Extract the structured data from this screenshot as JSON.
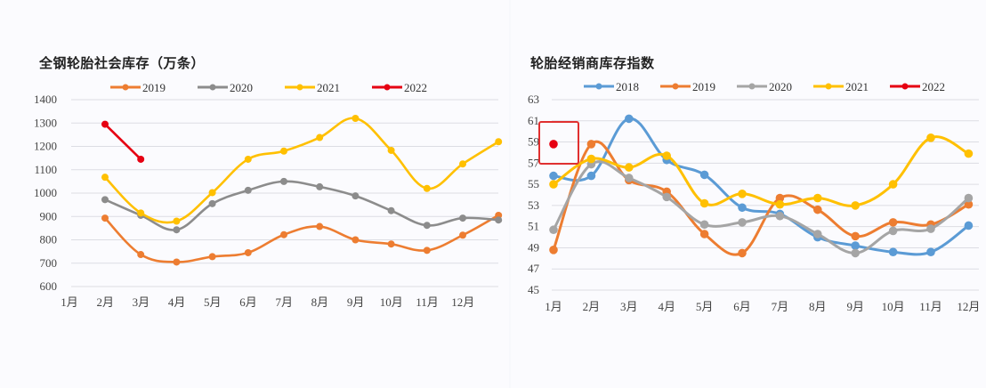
{
  "chart_data": [
    {
      "type": "line",
      "title": "全钢轮胎社会库存（万条）",
      "xlabel": "",
      "ylabel": "",
      "categories": [
        "1月",
        "2月",
        "3月",
        "4月",
        "5月",
        "6月",
        "7月",
        "8月",
        "9月",
        "10月",
        "11月",
        "12月"
      ],
      "ylim": [
        600,
        1400
      ],
      "yticks": [
        600,
        700,
        800,
        900,
        1000,
        1100,
        1200,
        1300,
        1400
      ],
      "grid": true,
      "legend_position": "top",
      "note": "Series points are plotted starting at the 2月 tick position, with the 12th point beyond 12月",
      "series": [
        {
          "name": "2019",
          "color": "#ed7d31",
          "values": [
            893,
            737,
            705,
            728,
            745,
            822,
            857,
            800,
            782,
            755,
            820,
            905
          ]
        },
        {
          "name": "2020",
          "color": "#8c8c8c",
          "values": [
            972,
            905,
            843,
            955,
            1012,
            1050,
            1027,
            988,
            925,
            862,
            893,
            885
          ]
        },
        {
          "name": "2021",
          "color": "#ffc000",
          "values": [
            1068,
            915,
            880,
            1002,
            1145,
            1180,
            1238,
            1320,
            1183,
            1020,
            1125,
            1220
          ]
        },
        {
          "name": "2022",
          "color": "#e60012",
          "values": [
            1295,
            1145
          ]
        }
      ]
    },
    {
      "type": "line",
      "title": "轮胎经销商库存指数",
      "xlabel": "",
      "ylabel": "",
      "categories": [
        "1月",
        "2月",
        "3月",
        "4月",
        "5月",
        "6月",
        "7月",
        "8月",
        "9月",
        "10月",
        "11月",
        "12月"
      ],
      "ylim": [
        45,
        63
      ],
      "yticks": [
        45,
        47,
        49,
        51,
        53,
        55,
        57,
        59,
        61,
        63
      ],
      "grid": true,
      "legend_position": "top",
      "annotations": [
        "red box highlighting 2022 January value"
      ],
      "series": [
        {
          "name": "2018",
          "color": "#5b9bd5",
          "values": [
            55.8,
            55.8,
            61.2,
            57.3,
            55.9,
            52.8,
            52.2,
            50.0,
            49.2,
            48.6,
            48.6,
            51.1
          ]
        },
        {
          "name": "2019",
          "color": "#ed7d31",
          "values": [
            48.8,
            58.8,
            55.4,
            54.3,
            50.3,
            48.5,
            53.7,
            52.6,
            50.1,
            51.4,
            51.2,
            53.1
          ]
        },
        {
          "name": "2020",
          "color": "#a5a5a5",
          "values": [
            50.7,
            56.9,
            55.6,
            53.8,
            51.2,
            51.4,
            52.0,
            50.3,
            48.5,
            50.6,
            50.8,
            53.7
          ]
        },
        {
          "name": "2021",
          "color": "#ffc000",
          "values": [
            55.0,
            57.4,
            56.6,
            57.7,
            53.2,
            54.1,
            53.1,
            53.7,
            53.0,
            55.0,
            59.4,
            57.9
          ]
        },
        {
          "name": "2022",
          "color": "#e60012",
          "values": [
            58.8
          ]
        }
      ]
    }
  ],
  "left": {
    "title": "全钢轮胎社会库存（万条）",
    "legend": [
      "2019",
      "2020",
      "2021",
      "2022"
    ],
    "yticks": [
      "1400",
      "1300",
      "1200",
      "1100",
      "1000",
      "900",
      "800",
      "700",
      "600"
    ],
    "xticks": [
      "1月",
      "2月",
      "3月",
      "4月",
      "5月",
      "6月",
      "7月",
      "8月",
      "9月",
      "10月",
      "11月",
      "12月"
    ]
  },
  "right": {
    "title": "轮胎经销商库存指数",
    "legend": [
      "2018",
      "2019",
      "2020",
      "2021",
      "2022"
    ],
    "yticks": [
      "63",
      "61",
      "59",
      "57",
      "55",
      "53",
      "51",
      "49",
      "47",
      "45"
    ],
    "xticks": [
      "1月",
      "2月",
      "3月",
      "4月",
      "5月",
      "6月",
      "7月",
      "8月",
      "9月",
      "10月",
      "11月",
      "12月"
    ]
  }
}
